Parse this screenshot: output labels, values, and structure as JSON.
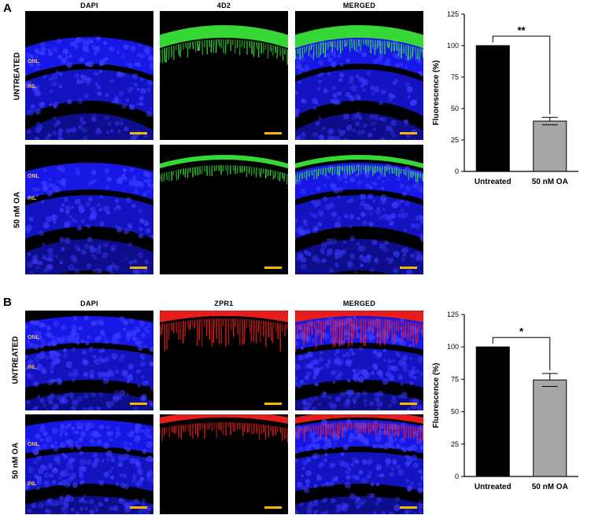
{
  "panel_a": {
    "letter": "A",
    "col_titles": [
      "DAPI",
      "4D2",
      "MERGED"
    ],
    "row_labels": [
      "UNTREATED",
      "50 nM OA"
    ],
    "layer_labels": {
      "onl": "ONL",
      "inl": "INL"
    },
    "stain_color": "#3cf03c"
  },
  "panel_b": {
    "letter": "B",
    "col_titles": [
      "DAPI",
      "ZPR1",
      "MERGED"
    ],
    "row_labels": [
      "UNTREATED",
      "50 nM OA"
    ],
    "layer_labels": {
      "onl": "ONL",
      "inl": "INL"
    },
    "stain_color": "#ff2020"
  },
  "colors": {
    "dapi": "#1a1aff",
    "scale_bar": "#f5b800",
    "layer_label": "#e8c060",
    "bar_untreated": "#000000",
    "bar_treated": "#a6a6a6"
  },
  "chart_data": [
    {
      "type": "bar",
      "categories": [
        "Untreated",
        "50 nM OA"
      ],
      "values": [
        100,
        40
      ],
      "errors": [
        0,
        3
      ],
      "ylabel": "Fluorescence (%)",
      "ylim": [
        0,
        125
      ],
      "yticks": [
        0,
        25,
        50,
        75,
        100,
        125
      ],
      "significance": "**"
    },
    {
      "type": "bar",
      "categories": [
        "Untreated",
        "50 nM OA"
      ],
      "values": [
        100,
        74.5
      ],
      "errors": [
        0,
        5
      ],
      "ylabel": "Fluorescence (%)",
      "ylim": [
        0,
        125
      ],
      "yticks": [
        0,
        25,
        50,
        75,
        100,
        125
      ],
      "significance": "*"
    }
  ]
}
